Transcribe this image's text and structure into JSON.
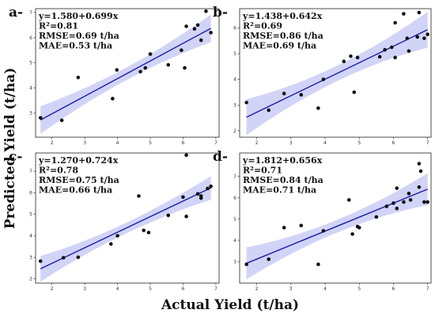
{
  "figure": {
    "xlabel": "Actual Yield (t/ha)",
    "ylabel": "Predicted Yield (t/ha)",
    "colors": {
      "band": "#c9ccf5",
      "line": "#1a1aa8",
      "point": "#111111",
      "axis": "#222222"
    }
  },
  "chart_data": [
    {
      "type": "scatter",
      "panel": "a-",
      "stats": [
        "y=1.580+0.699x",
        "R²=0.81",
        "RMSE=0.69 t/ha",
        "MAE=0.53 t/ha"
      ],
      "xlim": [
        1.5,
        7.1
      ],
      "ylim": [
        2.05,
        7.15
      ],
      "xticks": [
        2,
        3,
        4,
        5,
        6,
        7
      ],
      "yticks": [
        3,
        4,
        5,
        6,
        7
      ],
      "fit": {
        "intercept": 1.58,
        "slope": 0.699
      },
      "band_halfwidth": [
        0.55,
        0.25,
        0.55
      ],
      "points": [
        [
          1.65,
          2.82
        ],
        [
          2.3,
          2.72
        ],
        [
          2.8,
          4.42
        ],
        [
          3.85,
          3.58
        ],
        [
          3.98,
          4.72
        ],
        [
          4.7,
          4.65
        ],
        [
          4.85,
          4.8
        ],
        [
          5.0,
          5.35
        ],
        [
          5.55,
          4.92
        ],
        [
          5.95,
          5.5
        ],
        [
          6.05,
          4.8
        ],
        [
          6.1,
          6.45
        ],
        [
          6.35,
          6.35
        ],
        [
          6.45,
          6.5
        ],
        [
          6.55,
          5.9
        ],
        [
          6.7,
          7.05
        ],
        [
          6.85,
          6.2
        ]
      ]
    },
    {
      "type": "scatter",
      "panel": "b-",
      "stats": [
        "y=1.438+0.642x",
        "R²=0.69",
        "RMSE=0.86 t/ha",
        "MAE=0.69 t/ha"
      ],
      "xlim": [
        1.5,
        7.1
      ],
      "ylim": [
        1.75,
        6.75
      ],
      "xticks": [
        2,
        3,
        4,
        5,
        6,
        7
      ],
      "yticks": [
        2,
        3,
        4,
        5,
        6
      ],
      "fit": {
        "intercept": 1.438,
        "slope": 0.642
      },
      "band_halfwidth": [
        0.7,
        0.3,
        0.7
      ],
      "points": [
        [
          1.7,
          3.1
        ],
        [
          2.35,
          2.8
        ],
        [
          2.8,
          3.45
        ],
        [
          3.3,
          3.4
        ],
        [
          3.8,
          2.88
        ],
        [
          3.95,
          4.0
        ],
        [
          4.55,
          4.7
        ],
        [
          4.75,
          4.9
        ],
        [
          4.85,
          3.5
        ],
        [
          4.95,
          4.85
        ],
        [
          5.6,
          4.88
        ],
        [
          5.75,
          5.15
        ],
        [
          5.95,
          5.25
        ],
        [
          6.05,
          6.2
        ],
        [
          6.05,
          4.85
        ],
        [
          6.3,
          6.55
        ],
        [
          6.4,
          5.6
        ],
        [
          6.45,
          5.1
        ],
        [
          6.7,
          5.65
        ],
        [
          6.75,
          6.6
        ],
        [
          6.9,
          5.6
        ],
        [
          7.0,
          5.75
        ]
      ]
    },
    {
      "type": "scatter",
      "panel": "c-",
      "stats": [
        "y=1.270+0.724x",
        "R²=0.78",
        "RMSE=0.75 t/ha",
        "MAE=0.66 t/ha"
      ],
      "xlim": [
        1.5,
        7.1
      ],
      "ylim": [
        1.8,
        7.85
      ],
      "xticks": [
        2,
        3,
        4,
        5,
        6,
        7
      ],
      "yticks": [
        2,
        3,
        4,
        5,
        6,
        7
      ],
      "fit": {
        "intercept": 1.27,
        "slope": 0.724
      },
      "band_halfwidth": [
        0.6,
        0.25,
        0.55
      ],
      "points": [
        [
          1.65,
          2.82
        ],
        [
          2.35,
          2.98
        ],
        [
          2.8,
          3.0
        ],
        [
          3.8,
          3.62
        ],
        [
          4.0,
          4.0
        ],
        [
          4.65,
          5.85
        ],
        [
          4.8,
          4.25
        ],
        [
          4.95,
          4.15
        ],
        [
          5.55,
          4.95
        ],
        [
          6.0,
          5.8
        ],
        [
          6.1,
          7.75
        ],
        [
          6.1,
          4.9
        ],
        [
          6.45,
          5.95
        ],
        [
          6.55,
          5.85
        ],
        [
          6.55,
          5.75
        ],
        [
          6.75,
          6.2
        ],
        [
          6.85,
          6.3
        ]
      ]
    },
    {
      "type": "scatter",
      "panel": "d-",
      "stats": [
        "y=1.812+0.656x",
        "R²=0.71",
        "RMSE=0.84 t/ha",
        "MAE=0.71 t/ha"
      ],
      "xlim": [
        1.5,
        7.1
      ],
      "ylim": [
        2.0,
        8.1
      ],
      "xticks": [
        2,
        3,
        4,
        5,
        6,
        7
      ],
      "yticks": [
        3,
        4,
        5,
        6,
        7
      ],
      "fit": {
        "intercept": 1.812,
        "slope": 0.656
      },
      "band_halfwidth": [
        0.75,
        0.3,
        0.75
      ],
      "points": [
        [
          1.7,
          2.88
        ],
        [
          2.35,
          3.12
        ],
        [
          2.8,
          4.6
        ],
        [
          3.3,
          4.7
        ],
        [
          3.8,
          2.88
        ],
        [
          3.95,
          4.45
        ],
        [
          4.7,
          5.9
        ],
        [
          4.8,
          4.3
        ],
        [
          4.95,
          4.65
        ],
        [
          5.0,
          4.6
        ],
        [
          5.5,
          5.1
        ],
        [
          5.8,
          5.6
        ],
        [
          6.0,
          5.75
        ],
        [
          6.1,
          5.5
        ],
        [
          6.1,
          6.45
        ],
        [
          6.3,
          5.8
        ],
        [
          6.45,
          6.2
        ],
        [
          6.5,
          5.9
        ],
        [
          6.75,
          7.6
        ],
        [
          6.75,
          6.5
        ],
        [
          6.8,
          7.25
        ],
        [
          6.9,
          5.8
        ],
        [
          7.0,
          5.8
        ]
      ]
    }
  ]
}
